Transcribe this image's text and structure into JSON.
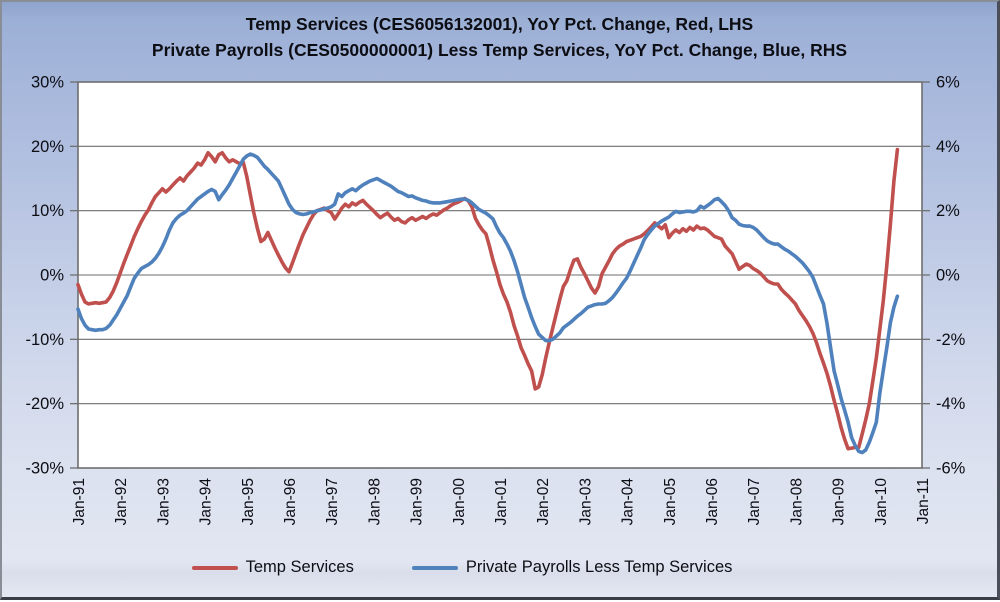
{
  "window": {
    "type": "excel-style-chart",
    "background_accent": "#a5b6db",
    "plot_background": "#ffffff",
    "grid_color": "#6e6e6e"
  },
  "title": {
    "line1": "Temp Services (CES6056132001), YoY Pct. Change, Red, LHS",
    "line2": "Private Payrolls (CES0500000001)  Less Temp Services, YoY Pct. Change, Blue, RHS"
  },
  "legend": {
    "items": [
      {
        "label": "Temp Services",
        "color": "#C0504D"
      },
      {
        "label": "Private Payrolls Less Temp Services",
        "color": "#4F81BD"
      }
    ]
  },
  "chart_data": {
    "type": "line",
    "title": "Temp Services (CES6056132001), YoY Pct. Change, Red, LHS / Private Payrolls (CES0500000001) Less Temp Services, YoY Pct. Change, Blue, RHS",
    "x_start_month": "Jan-1991",
    "x_end_month": "Jun-2010",
    "x_total_months": 240,
    "frequency": "monthly",
    "grid": true,
    "legend_position": "bottom",
    "x_tick_labels": [
      "Jan-91",
      "Jan-92",
      "Jan-93",
      "Jan-94",
      "Jan-95",
      "Jan-96",
      "Jan-97",
      "Jan-98",
      "Jan-99",
      "Jan-00",
      "Jan-01",
      "Jan-02",
      "Jan-03",
      "Jan-04",
      "Jan-05",
      "Jan-06",
      "Jan-07",
      "Jan-08",
      "Jan-09",
      "Jan-10",
      "Jan-11"
    ],
    "left_axis": {
      "min": -30,
      "max": 30,
      "unit": "%",
      "tick_labels": [
        "30%",
        "20%",
        "10%",
        "0%",
        "-10%",
        "-20%",
        "-30%"
      ]
    },
    "right_axis": {
      "min": -6,
      "max": 6,
      "unit": "%",
      "tick_labels": [
        "6%",
        "4%",
        "2%",
        "0%",
        "-2%",
        "-4%",
        "-6%"
      ]
    },
    "series": [
      {
        "name": "Temp Services",
        "axis": "left",
        "color": "#C0504D",
        "values": [
          -1.5,
          -3.0,
          -4.2,
          -4.5,
          -4.4,
          -4.3,
          -4.4,
          -4.3,
          -4.2,
          -3.5,
          -2.5,
          -1.2,
          0.3,
          1.8,
          3.2,
          4.6,
          6.0,
          7.2,
          8.3,
          9.3,
          10.1,
          11.2,
          12.2,
          12.8,
          13.4,
          12.9,
          13.4,
          14.0,
          14.6,
          15.1,
          14.6,
          15.4,
          16.0,
          16.6,
          17.4,
          17.1,
          17.9,
          19.0,
          18.4,
          17.6,
          18.7,
          19.0,
          18.2,
          17.6,
          17.9,
          17.6,
          17.3,
          17.5,
          15.3,
          12.5,
          9.7,
          7.3,
          5.2,
          5.6,
          6.6,
          5.4,
          4.2,
          3.1,
          2.0,
          1.1,
          0.5,
          1.9,
          3.4,
          4.9,
          6.3,
          7.4,
          8.5,
          9.4,
          10.0,
          10.2,
          10.4,
          10.0,
          9.7,
          8.7,
          9.5,
          10.4,
          11.0,
          10.6,
          11.2,
          10.9,
          11.3,
          11.6,
          11.0,
          10.5,
          10.0,
          9.4,
          8.9,
          9.3,
          9.6,
          9.0,
          8.5,
          8.8,
          8.3,
          8.1,
          8.6,
          8.9,
          8.5,
          8.8,
          9.1,
          8.8,
          9.2,
          9.5,
          9.3,
          9.7,
          10.1,
          10.4,
          10.8,
          11.1,
          11.3,
          11.6,
          11.9,
          11.5,
          10.6,
          8.8,
          7.8,
          7.0,
          6.4,
          4.5,
          2.3,
          0.5,
          -1.5,
          -3.0,
          -4.2,
          -5.8,
          -7.9,
          -9.5,
          -11.3,
          -12.5,
          -13.8,
          -14.9,
          -17.7,
          -17.4,
          -15.5,
          -12.9,
          -10.5,
          -8.2,
          -6.0,
          -3.8,
          -1.8,
          -0.9,
          0.8,
          2.3,
          2.5,
          1.2,
          0.2,
          -0.9,
          -2.0,
          -2.8,
          -1.8,
          0.2,
          1.2,
          2.2,
          3.3,
          4.0,
          4.5,
          4.8,
          5.2,
          5.4,
          5.6,
          5.8,
          6.0,
          6.4,
          6.9,
          7.5,
          8.1,
          7.6,
          7.2,
          7.8,
          5.8,
          6.5,
          7.0,
          6.6,
          7.2,
          6.8,
          7.4,
          7.0,
          7.6,
          7.2,
          7.3,
          7.0,
          6.5,
          6.0,
          5.8,
          5.6,
          4.5,
          3.9,
          3.3,
          2.1,
          0.9,
          1.3,
          1.7,
          1.5,
          1.0,
          0.7,
          0.3,
          -0.3,
          -0.9,
          -1.2,
          -1.4,
          -1.4,
          -2.2,
          -2.8,
          -3.3,
          -3.9,
          -4.5,
          -5.5,
          -6.3,
          -7.1,
          -8.0,
          -9.1,
          -10.5,
          -12.2,
          -13.7,
          -15.3,
          -17.3,
          -19.5,
          -21.5,
          -23.7,
          -25.5,
          -27.0,
          -26.9,
          -26.8,
          -26.8,
          -24.7,
          -22.5,
          -20.0,
          -16.5,
          -12.9,
          -8.5,
          -4.0,
          1.5,
          7.9,
          14.6,
          19.5
        ]
      },
      {
        "name": "Private Payrolls Less Temp Services",
        "axis": "right",
        "color": "#4F81BD",
        "values": [
          -1.06,
          -1.36,
          -1.56,
          -1.68,
          -1.7,
          -1.72,
          -1.7,
          -1.7,
          -1.66,
          -1.56,
          -1.4,
          -1.24,
          -1.04,
          -0.84,
          -0.64,
          -0.36,
          -0.1,
          0.06,
          0.2,
          0.26,
          0.32,
          0.4,
          0.52,
          0.68,
          0.88,
          1.12,
          1.4,
          1.62,
          1.76,
          1.86,
          1.92,
          2.0,
          2.12,
          2.24,
          2.36,
          2.44,
          2.52,
          2.6,
          2.66,
          2.6,
          2.34,
          2.5,
          2.64,
          2.8,
          3.0,
          3.2,
          3.4,
          3.6,
          3.7,
          3.76,
          3.72,
          3.66,
          3.52,
          3.38,
          3.28,
          3.16,
          3.04,
          2.92,
          2.68,
          2.44,
          2.2,
          2.04,
          1.94,
          1.9,
          1.88,
          1.9,
          1.94,
          1.96,
          2.0,
          2.02,
          2.06,
          2.08,
          2.12,
          2.2,
          2.52,
          2.44,
          2.56,
          2.62,
          2.68,
          2.62,
          2.72,
          2.8,
          2.86,
          2.92,
          2.96,
          3.0,
          2.94,
          2.88,
          2.82,
          2.76,
          2.68,
          2.6,
          2.56,
          2.5,
          2.44,
          2.46,
          2.4,
          2.36,
          2.32,
          2.3,
          2.26,
          2.24,
          2.24,
          2.24,
          2.26,
          2.28,
          2.3,
          2.32,
          2.34,
          2.36,
          2.36,
          2.32,
          2.24,
          2.14,
          2.04,
          1.98,
          1.92,
          1.84,
          1.74,
          1.5,
          1.3,
          1.16,
          0.96,
          0.74,
          0.44,
          0.1,
          -0.3,
          -0.7,
          -1.0,
          -1.32,
          -1.6,
          -1.84,
          -1.94,
          -2.04,
          -2.04,
          -2.0,
          -1.9,
          -1.8,
          -1.64,
          -1.56,
          -1.48,
          -1.38,
          -1.28,
          -1.2,
          -1.1,
          -1.0,
          -0.96,
          -0.92,
          -0.9,
          -0.9,
          -0.88,
          -0.8,
          -0.7,
          -0.56,
          -0.4,
          -0.24,
          -0.1,
          0.12,
          0.36,
          0.6,
          0.84,
          1.1,
          1.26,
          1.4,
          1.52,
          1.6,
          1.68,
          1.74,
          1.8,
          1.9,
          1.98,
          1.94,
          1.96,
          1.98,
          1.98,
          1.96,
          2.0,
          2.14,
          2.08,
          2.16,
          2.24,
          2.34,
          2.38,
          2.28,
          2.16,
          2.0,
          1.78,
          1.7,
          1.58,
          1.54,
          1.52,
          1.52,
          1.48,
          1.4,
          1.28,
          1.16,
          1.06,
          1.0,
          0.96,
          0.96,
          0.88,
          0.8,
          0.74,
          0.66,
          0.58,
          0.48,
          0.38,
          0.24,
          0.1,
          -0.08,
          -0.36,
          -0.64,
          -0.9,
          -1.5,
          -2.26,
          -2.98,
          -3.4,
          -3.84,
          -4.2,
          -4.58,
          -5.06,
          -5.3,
          -5.48,
          -5.52,
          -5.44,
          -5.2,
          -4.9,
          -4.58,
          -3.68,
          -2.96,
          -2.26,
          -1.48,
          -1.0,
          -0.66
        ]
      }
    ]
  }
}
